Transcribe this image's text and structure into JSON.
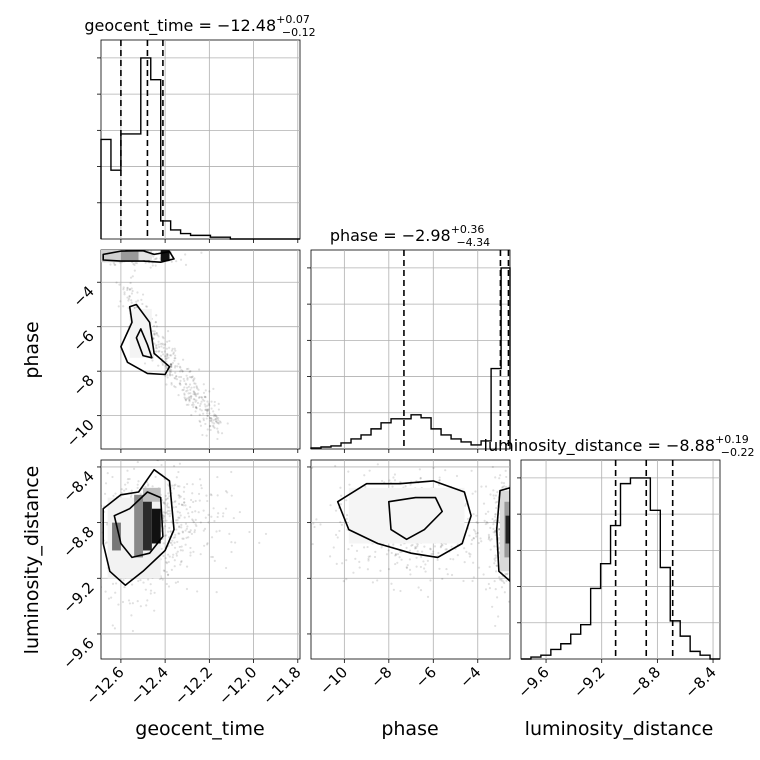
{
  "chart_data": {
    "type": "corner",
    "parameters": [
      "geocent_time",
      "phase",
      "luminosity_distance"
    ],
    "axis_labels": {
      "geocent_time": "geocent_time",
      "phase": "phase",
      "luminosity_distance": "luminosity_distance"
    },
    "ranges": {
      "geocent_time": [
        -12.69,
        -11.79
      ],
      "phase": [
        -11.5,
        -2.55
      ],
      "luminosity_distance": [
        -9.78,
        -8.35
      ]
    },
    "ticks": {
      "geocent_time": [
        "−12.6",
        "−12.4",
        "−12.2",
        "−12.0",
        "−11.8"
      ],
      "phase": [
        "−10",
        "−8",
        "−6",
        "−4"
      ],
      "luminosity_distance": [
        "−9.6",
        "−9.2",
        "−8.8",
        "−8.4"
      ]
    },
    "tick_values": {
      "geocent_time": [
        -12.6,
        -12.4,
        -12.2,
        -12.0,
        -11.8
      ],
      "phase": [
        -10,
        -8,
        -6,
        -4
      ],
      "luminosity_distance": [
        -9.6,
        -9.2,
        -8.8,
        -8.4
      ]
    },
    "summaries": {
      "geocent_time": {
        "name": "geocent_time",
        "median": "−12.48",
        "plus": "+0.07",
        "minus": "−0.12",
        "q16": -12.6,
        "q50": -12.48,
        "q84": -12.41
      },
      "phase": {
        "name": "phase",
        "median": "−2.98",
        "plus": "+0.36",
        "minus": "−4.34",
        "q16": -7.32,
        "q50": -2.98,
        "q84": -2.62
      },
      "luminosity_distance": {
        "name": "luminosity_distance",
        "median": "−8.88",
        "plus": "+0.19",
        "minus": "−0.22",
        "q16": -9.1,
        "q50": -8.88,
        "q84": -8.69
      }
    },
    "histograms": {
      "geocent_time": {
        "edges": [
          -12.69,
          -12.645,
          -12.6,
          -12.555,
          -12.51,
          -12.465,
          -12.42,
          -12.375,
          -12.33,
          -12.285,
          -12.24,
          -12.195,
          -12.15,
          -12.105,
          -12.06,
          -12.015,
          -11.97,
          -11.925,
          -11.88,
          -11.835,
          -11.79
        ],
        "counts": [
          0.55,
          0.38,
          0.58,
          0.58,
          1.0,
          0.88,
          0.1,
          0.05,
          0.03,
          0.02,
          0.02,
          0.01,
          0.01,
          0,
          0,
          0,
          0,
          0,
          0,
          0
        ]
      },
      "phase": {
        "edges": [
          -11.5,
          -11.05,
          -10.6,
          -10.15,
          -9.7,
          -9.25,
          -8.8,
          -8.35,
          -7.9,
          -7.45,
          -7.0,
          -6.55,
          -6.1,
          -5.65,
          -5.2,
          -4.75,
          -4.3,
          -3.85,
          -3.4,
          -2.95,
          -2.55
        ],
        "counts": [
          0.005,
          0.01,
          0.015,
          0.03,
          0.05,
          0.07,
          0.1,
          0.13,
          0.15,
          0.15,
          0.17,
          0.155,
          0.1,
          0.07,
          0.05,
          0.035,
          0.02,
          0.04,
          0.4,
          0.9
        ]
      },
      "luminosity_distance": {
        "edges": [
          -9.78,
          -9.7085,
          -9.637,
          -9.5655,
          -9.494,
          -9.4225,
          -9.351,
          -9.2795,
          -9.208,
          -9.1365,
          -9.065,
          -8.9935,
          -8.922,
          -8.8505,
          -8.779,
          -8.7075,
          -8.636,
          -8.5645,
          -8.493,
          -8.4215,
          -8.35
        ],
        "counts": [
          0,
          0.01,
          0.02,
          0.05,
          0.08,
          0.13,
          0.18,
          0.37,
          0.5,
          0.7,
          0.92,
          0.95,
          0.95,
          0.78,
          0.48,
          0.2,
          0.12,
          0.04,
          0.02,
          0
        ]
      }
    },
    "contours": {
      "geocent_time__phase": [
        [
          [
            -12.68,
            -2.75
          ],
          [
            -12.6,
            -2.6
          ],
          [
            -12.5,
            -2.58
          ],
          [
            -12.45,
            -2.75
          ],
          [
            -12.38,
            -2.62
          ],
          [
            -12.36,
            -2.95
          ],
          [
            -12.42,
            -3.1
          ],
          [
            -12.5,
            -3.05
          ],
          [
            -12.6,
            -3.05
          ],
          [
            -12.68,
            -3.0
          ]
        ],
        [
          [
            -12.6,
            -6.9
          ],
          [
            -12.55,
            -5.8
          ],
          [
            -12.56,
            -5.1
          ],
          [
            -12.53,
            -5.0
          ],
          [
            -12.47,
            -5.8
          ],
          [
            -12.45,
            -7.2
          ],
          [
            -12.38,
            -7.8
          ],
          [
            -12.4,
            -8.15
          ],
          [
            -12.48,
            -8.1
          ],
          [
            -12.57,
            -7.6
          ]
        ],
        [
          [
            -12.53,
            -6.5
          ],
          [
            -12.51,
            -6.1
          ],
          [
            -12.48,
            -6.8
          ],
          [
            -12.46,
            -7.4
          ],
          [
            -12.5,
            -7.3
          ]
        ]
      ],
      "geocent_time__luminosity_distance": [
        [
          [
            -12.68,
            -8.7
          ],
          [
            -12.6,
            -8.6
          ],
          [
            -12.52,
            -8.58
          ],
          [
            -12.45,
            -8.42
          ],
          [
            -12.38,
            -8.5
          ],
          [
            -12.36,
            -8.85
          ],
          [
            -12.4,
            -9.0
          ],
          [
            -12.5,
            -9.15
          ],
          [
            -12.58,
            -9.25
          ],
          [
            -12.65,
            -9.15
          ],
          [
            -12.68,
            -8.95
          ]
        ],
        [
          [
            -12.63,
            -8.75
          ],
          [
            -12.56,
            -8.7
          ],
          [
            -12.48,
            -8.58
          ],
          [
            -12.42,
            -8.62
          ],
          [
            -12.41,
            -8.9
          ],
          [
            -12.47,
            -9.02
          ],
          [
            -12.55,
            -9.05
          ],
          [
            -12.6,
            -8.95
          ]
        ]
      ],
      "phase__luminosity_distance": [
        [
          [
            -10.3,
            -8.65
          ],
          [
            -9.0,
            -8.52
          ],
          [
            -7.5,
            -8.52
          ],
          [
            -6.0,
            -8.5
          ],
          [
            -4.6,
            -8.58
          ],
          [
            -4.3,
            -8.75
          ],
          [
            -4.7,
            -8.95
          ],
          [
            -5.8,
            -9.05
          ],
          [
            -7.0,
            -9.02
          ],
          [
            -8.5,
            -8.95
          ],
          [
            -9.8,
            -8.85
          ]
        ],
        [
          [
            -8.0,
            -8.65
          ],
          [
            -6.8,
            -8.62
          ],
          [
            -5.9,
            -8.62
          ],
          [
            -5.6,
            -8.72
          ],
          [
            -6.4,
            -8.85
          ],
          [
            -7.2,
            -8.92
          ],
          [
            -7.9,
            -8.85
          ]
        ],
        [
          [
            -2.55,
            -8.55
          ],
          [
            -3.0,
            -8.57
          ],
          [
            -3.15,
            -8.85
          ],
          [
            -3.05,
            -9.15
          ],
          [
            -2.55,
            -9.22
          ]
        ]
      ]
    }
  }
}
